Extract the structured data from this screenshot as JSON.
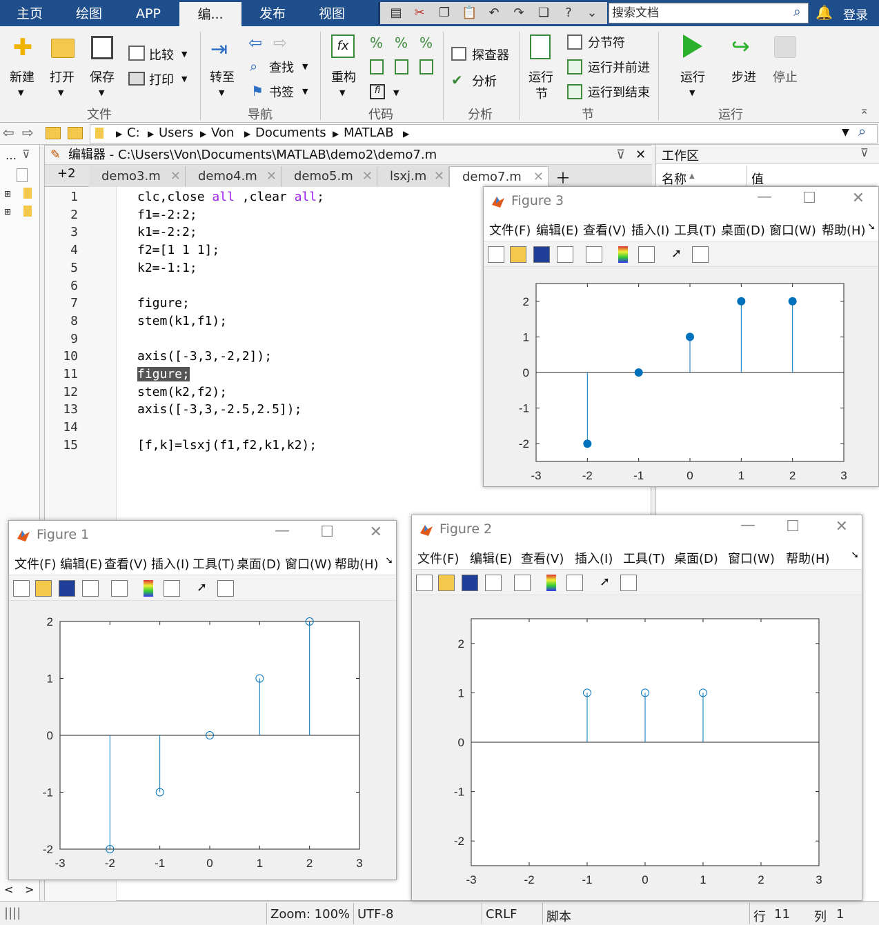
{
  "tabs": [
    "主页",
    "绘图",
    "APP",
    "编...",
    "发布",
    "视图"
  ],
  "search": {
    "placeholder": "搜索文档"
  },
  "login": "登录",
  "ribbon": {
    "file": {
      "new": "新建",
      "open": "打开",
      "save": "保存",
      "compare": "比较",
      "print": "打印",
      "group": "文件"
    },
    "nav": {
      "goto": "转至",
      "find": "查找",
      "bookmark": "书签",
      "group": "导航"
    },
    "code": {
      "refactor": "重构",
      "group": "代码"
    },
    "analyze": {
      "profiler": "探查器",
      "analyze": "分析",
      "group": "分析"
    },
    "section": {
      "run_section": "运行节",
      "run_section_l1": "运行",
      "run_section_l2": "节",
      "section_break": "分节符",
      "run_advance": "运行并前进",
      "run_to_end": "运行到结束",
      "group": "节"
    },
    "run": {
      "run": "运行",
      "step": "步进",
      "stop": "停止",
      "group": "运行"
    }
  },
  "address": [
    "C:",
    "Users",
    "Von",
    "Documents",
    "MATLAB"
  ],
  "editor": {
    "title": "编辑器 - C:\\Users\\Von\\Documents\\MATLAB\\demo2\\demo7.m",
    "overflow": "+2",
    "tabs": [
      "demo3.m",
      "demo4.m",
      "demo5.m",
      "lsxj.m",
      "demo7.m"
    ],
    "active_tab": "demo7.m",
    "lines": [
      {
        "n": "1",
        "text": "clc,close all ,clear all;"
      },
      {
        "n": "2",
        "text": "f1=-2:2;"
      },
      {
        "n": "3",
        "text": "k1=-2:2;"
      },
      {
        "n": "4",
        "text": "f2=[1 1 1];"
      },
      {
        "n": "5",
        "text": "k2=-1:1;"
      },
      {
        "n": "6",
        "text": ""
      },
      {
        "n": "7",
        "text": "figure;"
      },
      {
        "n": "8",
        "text": "stem(k1,f1);"
      },
      {
        "n": "9",
        "text": ""
      },
      {
        "n": "10",
        "text": "axis([-3,3,-2,2]);"
      },
      {
        "n": "11",
        "text": "figure;"
      },
      {
        "n": "12",
        "text": "stem(k2,f2);"
      },
      {
        "n": "13",
        "text": "axis([-3,3,-2.5,2.5]);"
      },
      {
        "n": "14",
        "text": ""
      },
      {
        "n": "15",
        "text": "[f,k]=lsxj(f1,f2,k1,k2);"
      }
    ]
  },
  "workspace": {
    "title": "工作区",
    "col_name": "名称",
    "col_value": "值"
  },
  "status": {
    "zoom": "Zoom: 100%",
    "encoding": "UTF-8",
    "eol": "CRLF",
    "type": "脚本",
    "row_label": "行",
    "row": "11",
    "col_label": "列",
    "col": "1"
  },
  "figure_menu": [
    "文件(F)",
    "编辑(E)",
    "查看(V)",
    "插入(I)",
    "工具(T)",
    "桌面(D)",
    "窗口(W)",
    "帮助(H)"
  ],
  "figures": [
    {
      "title": "Figure 3"
    },
    {
      "title": "Figure 1"
    },
    {
      "title": "Figure 2"
    }
  ],
  "chart_data": [
    {
      "figure": "Figure 3",
      "type": "stem",
      "x": [
        -2,
        -1,
        0,
        1,
        2
      ],
      "y": [
        -2,
        0,
        1,
        2,
        2
      ],
      "xlim": [
        -3,
        3
      ],
      "ylim": [
        -2.5,
        2.5
      ],
      "xticks": [
        "-3",
        "-2",
        "-1",
        "0",
        "1",
        "2",
        "3"
      ],
      "yticks": [
        "-2",
        "-1",
        "0",
        "1",
        "2"
      ],
      "marker": "filled",
      "color": "#0072bd"
    },
    {
      "figure": "Figure 1",
      "type": "stem",
      "x": [
        -2,
        -1,
        0,
        1,
        2
      ],
      "y": [
        -2,
        -1,
        0,
        1,
        2
      ],
      "xlim": [
        -3,
        3
      ],
      "ylim": [
        -2,
        2
      ],
      "xticks": [
        "-3",
        "-2",
        "-1",
        "0",
        "1",
        "2",
        "3"
      ],
      "yticks": [
        "-2",
        "-1",
        "0",
        "1",
        "2"
      ],
      "marker": "open",
      "color": "#0072bd"
    },
    {
      "figure": "Figure 2",
      "type": "stem",
      "x": [
        -1,
        0,
        1
      ],
      "y": [
        1,
        1,
        1
      ],
      "xlim": [
        -3,
        3
      ],
      "ylim": [
        -2.5,
        2.5
      ],
      "xticks": [
        "-3",
        "-2",
        "-1",
        "0",
        "1",
        "2",
        "3"
      ],
      "yticks": [
        "-2",
        "-1",
        "0",
        "1",
        "2"
      ],
      "marker": "open",
      "color": "#0072bd"
    }
  ]
}
